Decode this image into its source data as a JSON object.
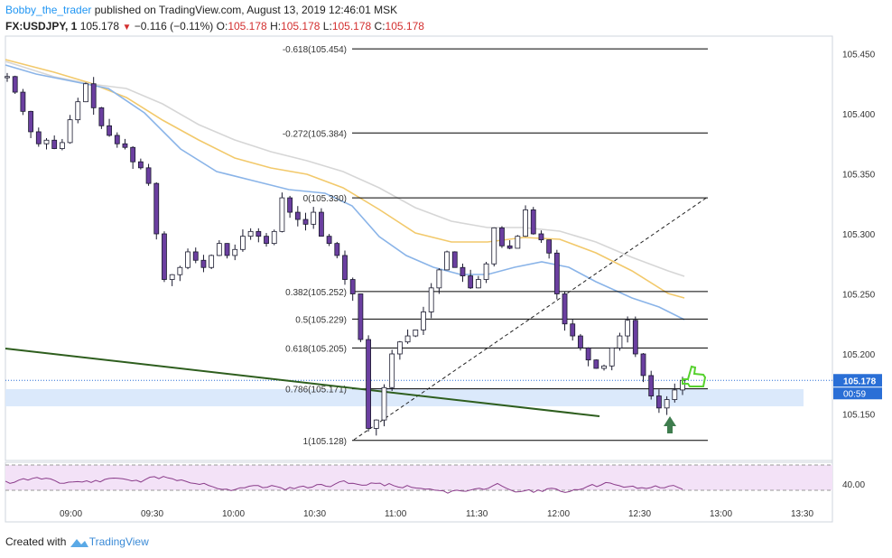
{
  "header": {
    "author": "Bobby_the_trader",
    "published_text": " published on TradingView.com, August 13, 2019 12:46:01 MSK",
    "symbol": "FX:USDJPY, 1",
    "price": "105.178",
    "change": "−0.116 (−0.11%)",
    "o_label": "O:",
    "o_value": "105.178",
    "h_label": "H:",
    "h_value": "105.178",
    "l_label": "L:",
    "l_value": "105.178",
    "c_label": "C:",
    "c_value": "105.178"
  },
  "footer": {
    "created_with": "Created with",
    "brand": "TradingView"
  },
  "colors": {
    "up_candle": "#ffffff",
    "down_candle": "#6b3fa0",
    "wick": "#1a1a2e",
    "ma_fast": "#8ab4e8",
    "ma_mid": "#f2c96b",
    "ma_slow": "#d6d6d6",
    "trendline": "#2e5e1e",
    "fib": "#000000",
    "support_zone": "#dbe9fb",
    "rsi_line": "#8a3c8a",
    "rsi_band": "#f3e2f7",
    "arrow": "#3f7d4e",
    "thumb": "#56d12e"
  },
  "chart_data": {
    "type": "candlestick",
    "title": "USDJPY 1-minute",
    "time_ticks": [
      "09:00",
      "09:30",
      "10:00",
      "10:30",
      "11:00",
      "11:30",
      "12:00",
      "12:30",
      "13:00",
      "13:30"
    ],
    "price_ticks": [
      "105.450",
      "105.400",
      "105.350",
      "105.300",
      "105.250",
      "105.200",
      "105.150"
    ],
    "ylim": [
      105.112,
      105.468
    ],
    "current_price": "105.178",
    "countdown": "00:59",
    "rsi_tick": "40.00",
    "fibonacci": [
      {
        "label": "-0.618(105.454)",
        "price": 105.454
      },
      {
        "label": "-0.272(105.384)",
        "price": 105.384
      },
      {
        "label": "0(105.330)",
        "price": 105.33
      },
      {
        "label": "0.382(105.252)",
        "price": 105.252
      },
      {
        "label": "0.5(105.229)",
        "price": 105.229
      },
      {
        "label": "0.618(105.205)",
        "price": 105.205
      },
      {
        "label": "0.786(105.171)",
        "price": 105.171
      },
      {
        "label": "1(105.128)",
        "price": 105.128
      }
    ],
    "close_series": [
      105.431,
      105.418,
      105.402,
      105.385,
      105.375,
      105.378,
      105.371,
      105.376,
      105.395,
      105.41,
      105.425,
      105.405,
      105.39,
      105.382,
      105.375,
      105.372,
      105.36,
      105.355,
      105.342,
      105.3,
      105.262,
      105.266,
      105.272,
      105.285,
      105.278,
      105.272,
      105.282,
      105.292,
      105.282,
      105.287,
      105.298,
      105.302,
      105.298,
      105.292,
      105.302,
      105.33,
      105.318,
      105.312,
      105.308,
      105.318,
      105.298,
      105.292,
      105.282,
      105.262,
      105.25,
      105.212,
      105.138,
      105.145,
      105.172,
      105.2,
      105.21,
      105.215,
      105.22,
      105.235,
      105.255,
      105.27,
      105.285,
      105.272,
      105.265,
      105.255,
      105.262,
      105.275,
      105.305,
      105.29,
      105.288,
      105.298,
      105.32,
      105.3,
      105.295,
      105.284,
      105.25,
      105.225,
      105.215,
      105.205,
      105.195,
      105.188,
      105.19,
      105.205,
      105.215,
      105.228,
      105.2,
      105.182,
      105.165,
      105.155,
      105.162,
      105.17,
      105.178
    ]
  }
}
